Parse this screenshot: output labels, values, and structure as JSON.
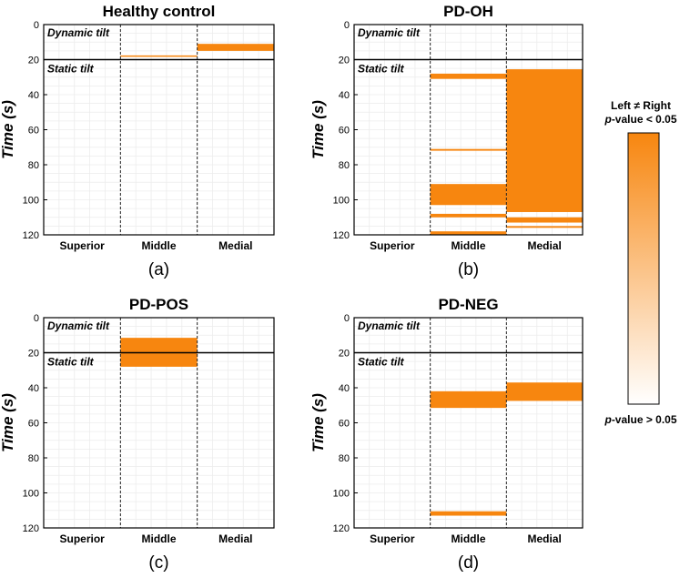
{
  "chart_data": {
    "type": "heatmap",
    "ylabel": "Time (s)",
    "y_ticks": [
      "0",
      "20",
      "40",
      "60",
      "80",
      "100",
      "120"
    ],
    "ylim": [
      0,
      120
    ],
    "phase_boundary_s": 20,
    "phase_labels": {
      "dynamic": "Dynamic tilt",
      "static": "Static tilt"
    },
    "categories": [
      "Superior",
      "Middle",
      "Medial"
    ],
    "bar_color": "#f7860f",
    "panels": [
      {
        "title": "Healthy control",
        "sublabel": "(a)",
        "segments": [
          {
            "region": "Middle",
            "start": 17.6,
            "end": 18.4
          },
          {
            "region": "Medial",
            "start": 11.0,
            "end": 15.0
          }
        ]
      },
      {
        "title": "PD-OH",
        "sublabel": "(b)",
        "segments": [
          {
            "region": "Middle",
            "start": 28.0,
            "end": 31.0
          },
          {
            "region": "Middle",
            "start": 71.0,
            "end": 72.0
          },
          {
            "region": "Middle",
            "start": 91.0,
            "end": 103.0
          },
          {
            "region": "Middle",
            "start": 108.0,
            "end": 110.0
          },
          {
            "region": "Middle",
            "start": 118.0,
            "end": 120.0
          },
          {
            "region": "Medial",
            "start": 25.5,
            "end": 107.0
          },
          {
            "region": "Medial",
            "start": 110.0,
            "end": 113.0
          },
          {
            "region": "Medial",
            "start": 115.0,
            "end": 116.0
          }
        ]
      },
      {
        "title": "PD-POS",
        "sublabel": "(c)",
        "segments": [
          {
            "region": "Middle",
            "start": 11.5,
            "end": 28.0
          }
        ]
      },
      {
        "title": "PD-NEG",
        "sublabel": "(d)",
        "segments": [
          {
            "region": "Middle",
            "start": 42.0,
            "end": 51.5
          },
          {
            "region": "Middle",
            "start": 110.5,
            "end": 113.0
          },
          {
            "region": "Medial",
            "start": 37.0,
            "end": 47.5
          }
        ]
      }
    ],
    "colorbar": {
      "title_line1": "Left ≠ Right",
      "title_line2_italic": "p",
      "title_line2_rest": "-value < 0.05",
      "bottom_italic": "p",
      "bottom_rest": "-value > 0.05",
      "color_high": "#f7860f",
      "color_low": "#ffffff"
    }
  }
}
